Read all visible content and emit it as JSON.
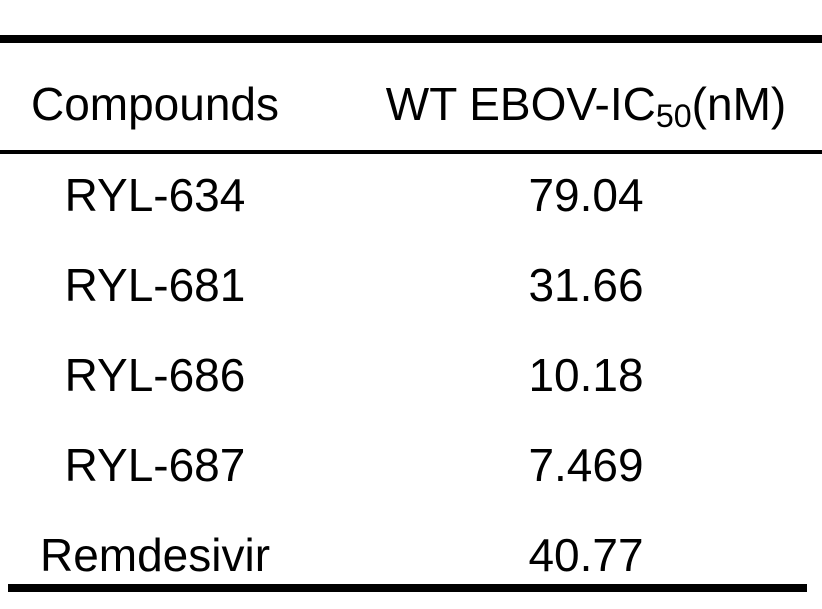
{
  "table": {
    "header": {
      "compounds_label": "Compounds",
      "ic50_prefix": "WT EBOV-IC",
      "ic50_sub": "50",
      "ic50_suffix": "(nM)"
    },
    "rows": [
      {
        "compound": "RYL-634",
        "value": "79.04"
      },
      {
        "compound": "RYL-681",
        "value": "31.66"
      },
      {
        "compound": "RYL-686",
        "value": "10.18"
      },
      {
        "compound": "RYL-687",
        "value": "7.469"
      },
      {
        "compound": "Remdesivir",
        "value": "40.77"
      }
    ]
  },
  "chart_data": {
    "type": "table",
    "title": "",
    "columns": [
      "Compounds",
      "WT EBOV-IC50(nM)"
    ],
    "rows": [
      [
        "RYL-634",
        79.04
      ],
      [
        "RYL-681",
        31.66
      ],
      [
        "RYL-686",
        10.18
      ],
      [
        "RYL-687",
        7.469
      ],
      [
        "Remdesivir",
        40.77
      ]
    ]
  },
  "colors": {
    "background": "#ffffff",
    "text": "#000000",
    "rule": "#000000"
  }
}
